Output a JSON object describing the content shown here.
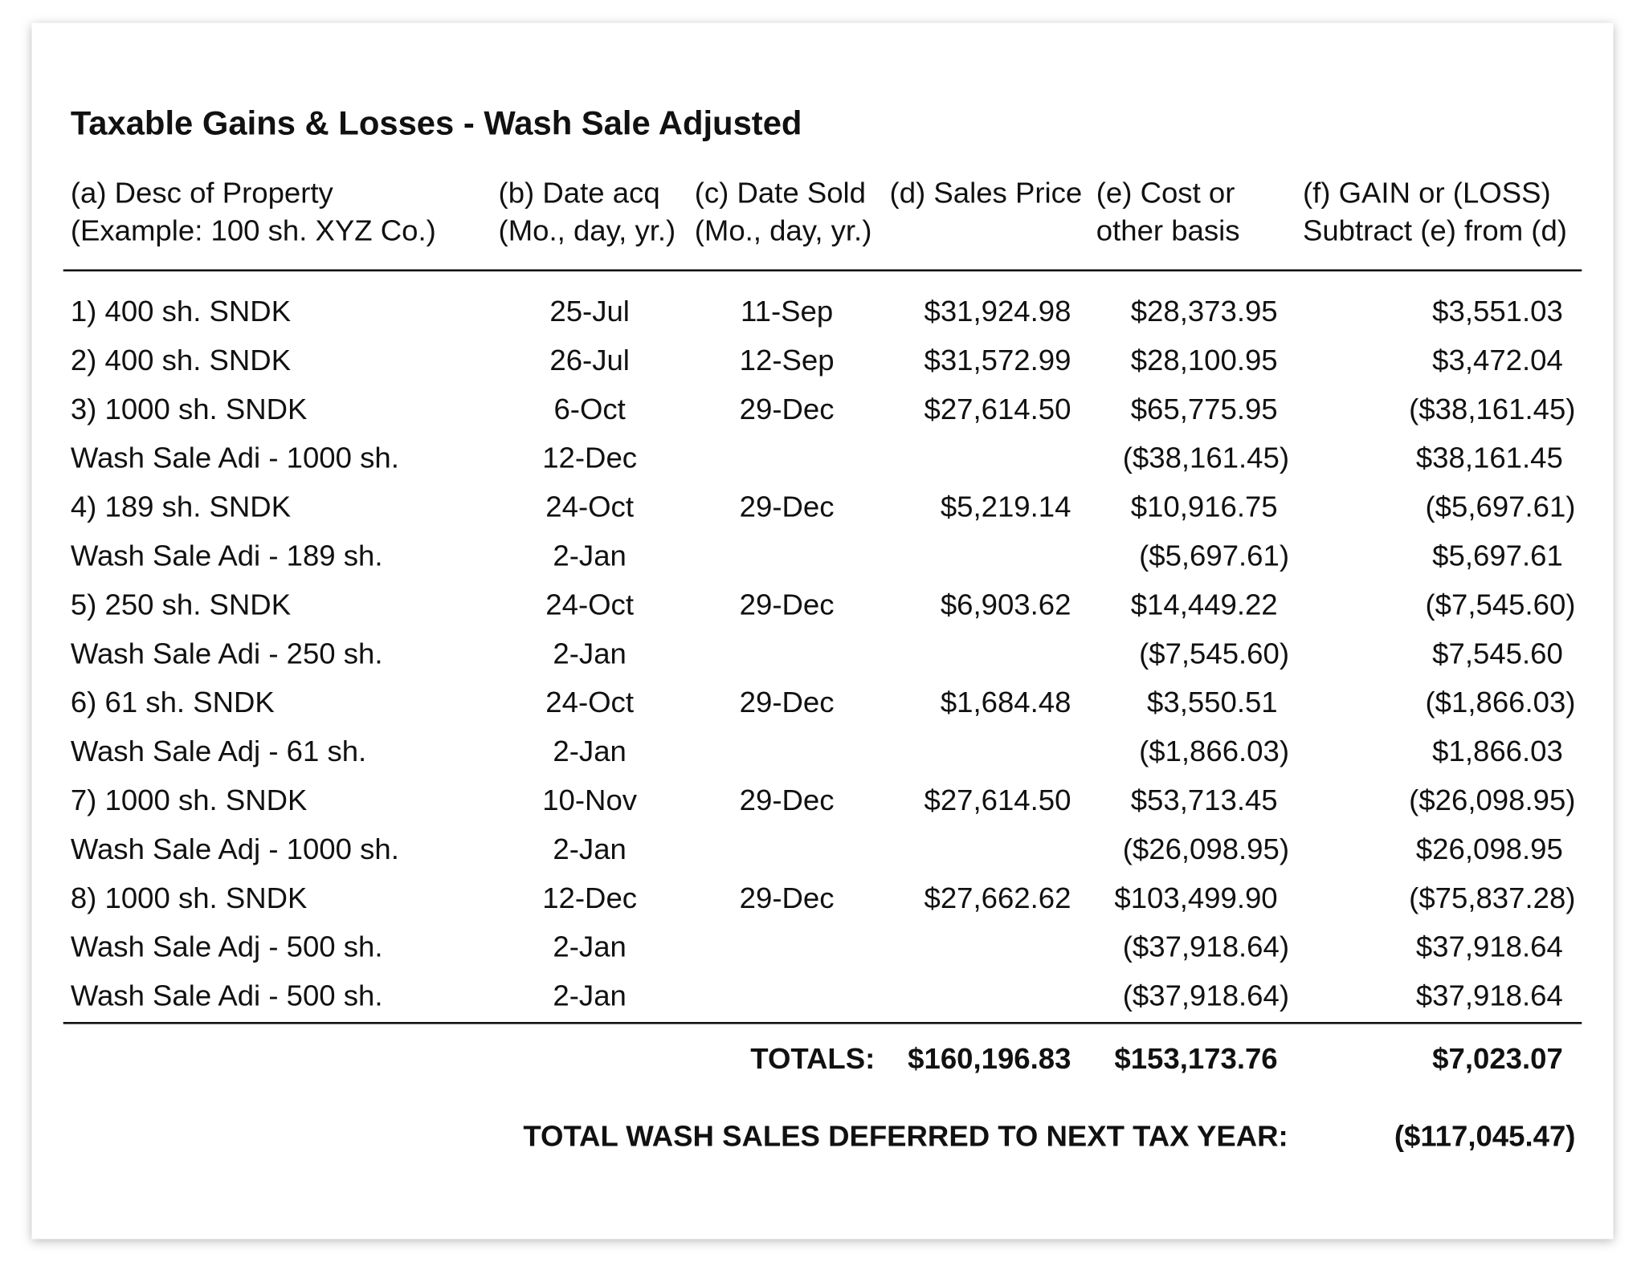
{
  "title": "Taxable Gains & Losses - Wash Sale Adjusted",
  "table": {
    "headers": [
      [
        "(a) Desc of Property",
        "(Example: 100 sh. XYZ Co.)"
      ],
      [
        "(b) Date acq",
        "(Mo., day, yr.)"
      ],
      [
        "(c) Date Sold",
        "(Mo., day, yr.)"
      ],
      [
        "(d) Sales Price",
        null
      ],
      [
        "(e) Cost or",
        "other basis"
      ],
      [
        "(f) GAIN or (LOSS)",
        "Subtract (e) from (d)"
      ]
    ],
    "rows": [
      [
        "1) 400 sh. SNDK",
        "25-Jul",
        "11-Sep",
        "$31,924.98",
        "$28,373.95",
        "$3,551.03"
      ],
      [
        "2) 400 sh. SNDK",
        "26-Jul",
        "12-Sep",
        "$31,572.99",
        "$28,100.95",
        "$3,472.04"
      ],
      [
        "3) 1000 sh. SNDK",
        "6-Oct",
        "29-Dec",
        "$27,614.50",
        "$65,775.95",
        "($38,161.45)"
      ],
      [
        "Wash Sale Adi - 1000 sh.",
        "12-Dec",
        null,
        null,
        "($38,161.45)",
        "$38,161.45"
      ],
      [
        "4) 189 sh. SNDK",
        "24-Oct",
        "29-Dec",
        "$5,219.14",
        "$10,916.75",
        "($5,697.61)"
      ],
      [
        "Wash Sale Adi - 189 sh.",
        "2-Jan",
        null,
        null,
        "($5,697.61)",
        "$5,697.61"
      ],
      [
        "5) 250 sh. SNDK",
        "24-Oct",
        "29-Dec",
        "$6,903.62",
        "$14,449.22",
        "($7,545.60)"
      ],
      [
        "Wash Sale Adi - 250 sh.",
        "2-Jan",
        null,
        null,
        "($7,545.60)",
        "$7,545.60"
      ],
      [
        "6) 61 sh. SNDK",
        "24-Oct",
        "29-Dec",
        "$1,684.48",
        "$3,550.51",
        "($1,866.03)"
      ],
      [
        "Wash Sale Adj - 61 sh.",
        "2-Jan",
        null,
        null,
        "($1,866.03)",
        "$1,866.03"
      ],
      [
        "7) 1000 sh. SNDK",
        "10-Nov",
        "29-Dec",
        "$27,614.50",
        "$53,713.45",
        "($26,098.95)"
      ],
      [
        "Wash Sale Adj - 1000 sh.",
        "2-Jan",
        null,
        null,
        "($26,098.95)",
        "$26,098.95"
      ],
      [
        "8) 1000 sh. SNDK",
        "12-Dec",
        "29-Dec",
        "$27,662.62",
        "$103,499.90",
        "($75,837.28)"
      ],
      [
        "Wash Sale Adj - 500 sh.",
        "2-Jan",
        null,
        null,
        "($37,918.64)",
        "$37,918.64"
      ],
      [
        "Wash Sale Adi - 500 sh.",
        "2-Jan",
        null,
        null,
        "($37,918.64)",
        "$37,918.64"
      ]
    ],
    "totals": {
      "label": "TOTALS:",
      "values": [
        "$160,196.83",
        "$153,173.76",
        "$7,023.07"
      ]
    },
    "deferred": {
      "label": "TOTAL WASH SALES DEFERRED TO NEXT TAX YEAR:",
      "value": "($117,045.47)"
    }
  }
}
